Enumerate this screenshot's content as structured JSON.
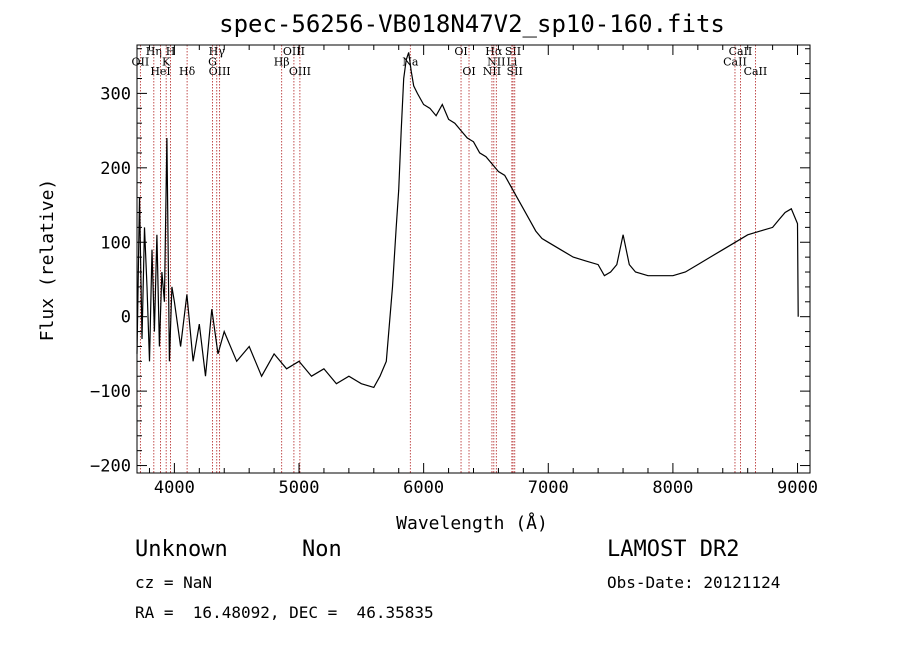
{
  "chart_data": {
    "type": "line",
    "title": "spec-56256-VB018N47V2_sp10-160.fits",
    "xlabel": "Wavelength (Å)",
    "ylabel": "Flux (relative)",
    "xlim": [
      3700,
      9100
    ],
    "ylim": [
      -210,
      365
    ],
    "xticks": [
      4000,
      5000,
      6000,
      7000,
      8000,
      9000
    ],
    "yticks": [
      -200,
      -100,
      0,
      100,
      200,
      300
    ],
    "line_color": "#000000",
    "marker_color": "#b22222",
    "series": [
      {
        "x": [
          3700,
          3720,
          3740,
          3760,
          3780,
          3800,
          3820,
          3840,
          3860,
          3880,
          3900,
          3920,
          3940,
          3960,
          3980,
          4000,
          4050,
          4100,
          4150,
          4200,
          4250,
          4300,
          4350,
          4400,
          4500,
          4600,
          4700,
          4800,
          4900,
          5000,
          5100,
          5200,
          5300,
          5400,
          5500,
          5600,
          5650,
          5700,
          5750,
          5780,
          5800,
          5820,
          5840,
          5860,
          5880,
          5900,
          5920,
          5950,
          6000,
          6050,
          6100,
          6150,
          6200,
          6250,
          6300,
          6350,
          6400,
          6450,
          6500,
          6550,
          6600,
          6650,
          6700,
          6750,
          6800,
          6850,
          6900,
          6950,
          7000,
          7100,
          7200,
          7300,
          7400,
          7450,
          7500,
          7550,
          7600,
          7650,
          7700,
          7800,
          7900,
          8000,
          8100,
          8200,
          8300,
          8400,
          8500,
          8600,
          8700,
          8800,
          8850,
          8900,
          8950,
          9000,
          9005
        ],
        "y": [
          -50,
          160,
          -30,
          120,
          40,
          -60,
          90,
          -20,
          110,
          -40,
          60,
          20,
          240,
          -60,
          40,
          20,
          -40,
          30,
          -60,
          -10,
          -80,
          10,
          -50,
          -20,
          -60,
          -40,
          -80,
          -50,
          -70,
          -60,
          -80,
          -70,
          -90,
          -80,
          -90,
          -95,
          -80,
          -60,
          40,
          120,
          170,
          250,
          320,
          345,
          355,
          330,
          310,
          300,
          285,
          280,
          270,
          285,
          265,
          260,
          250,
          240,
          235,
          220,
          215,
          205,
          195,
          190,
          175,
          160,
          145,
          130,
          115,
          105,
          100,
          90,
          80,
          75,
          70,
          55,
          60,
          70,
          110,
          70,
          60,
          55,
          55,
          55,
          60,
          70,
          80,
          90,
          100,
          110,
          115,
          120,
          130,
          140,
          145,
          125,
          0
        ]
      }
    ],
    "lines": [
      {
        "name": "OII",
        "x": 3727,
        "label_y": 343
      },
      {
        "name": "Hη",
        "x": 3835,
        "label_y": 357
      },
      {
        "name": "H",
        "x": 3969,
        "label_y": 357
      },
      {
        "name": "K",
        "x": 3934,
        "label_y": 343
      },
      {
        "name": "HeI",
        "x": 3889,
        "label_y": 330
      },
      {
        "name": "Hδ",
        "x": 4102,
        "label_y": 330
      },
      {
        "name": "Hγ",
        "x": 4340,
        "label_y": 357
      },
      {
        "name": "G",
        "x": 4306,
        "label_y": 343
      },
      {
        "name": "OIII",
        "x": 4363,
        "label_y": 330
      },
      {
        "name": "OIII",
        "x": 4959,
        "label_y": 357
      },
      {
        "name": "Hβ",
        "x": 4861,
        "label_y": 343
      },
      {
        "name": "OIII",
        "x": 5007,
        "label_y": 330
      },
      {
        "name": "Na",
        "x": 5893,
        "label_y": 343
      },
      {
        "name": "OI",
        "x": 6300,
        "label_y": 357
      },
      {
        "name": "OI",
        "x": 6364,
        "label_y": 330
      },
      {
        "name": "Hα",
        "x": 6563,
        "label_y": 357
      },
      {
        "name": "NII",
        "x": 6583,
        "label_y": 343
      },
      {
        "name": "NII",
        "x": 6548,
        "label_y": 330
      },
      {
        "name": "SII",
        "x": 6717,
        "label_y": 357
      },
      {
        "name": "SII",
        "x": 6731,
        "label_y": 330
      },
      {
        "name": "Li",
        "x": 6708,
        "label_y": 343
      },
      {
        "name": "CaII",
        "x": 8542,
        "label_y": 357
      },
      {
        "name": "CaII",
        "x": 8498,
        "label_y": 343
      },
      {
        "name": "CaII",
        "x": 8662,
        "label_y": 330
      }
    ]
  },
  "info": {
    "class_label": "Unknown",
    "subclass_label": "Non",
    "survey": "LAMOST DR2",
    "cz": "cz = NaN",
    "obs_date": "Obs-Date: 20121124",
    "coords": "RA =  16.48092, DEC =  46.35835"
  }
}
